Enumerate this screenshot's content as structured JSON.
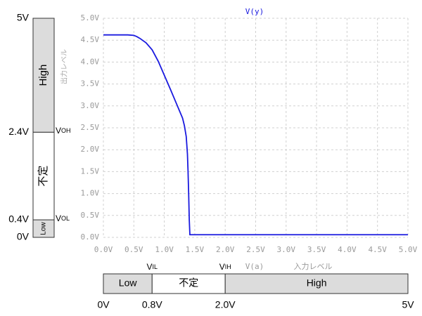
{
  "chart_data": {
    "type": "line",
    "title": "V(y)",
    "y_label": "出力レベル",
    "x_label": "V(a)",
    "x_label_2": "入力レベル",
    "series": [
      {
        "name": "V(y)",
        "color": "#1a1adf",
        "x": [
          0,
          0.1,
          0.2,
          0.3,
          0.4,
          0.5,
          0.55,
          0.6,
          0.7,
          0.8,
          0.9,
          1.0,
          1.1,
          1.2,
          1.3,
          1.33,
          1.36,
          1.38,
          1.39,
          1.4,
          1.41,
          1.42,
          2.0,
          3.0,
          4.0,
          5.0
        ],
        "values": [
          4.62,
          4.62,
          4.62,
          4.62,
          4.62,
          4.61,
          4.58,
          4.54,
          4.44,
          4.28,
          4.02,
          3.7,
          3.38,
          3.05,
          2.72,
          2.55,
          2.3,
          1.9,
          1.5,
          1.0,
          0.4,
          0.06,
          0.06,
          0.06,
          0.06,
          0.06
        ]
      }
    ],
    "xlim": [
      0,
      5
    ],
    "ylim": [
      0,
      5
    ],
    "xticks": [
      {
        "value": 0,
        "label": "0.0V"
      },
      {
        "value": 0.5,
        "label": "0.5V"
      },
      {
        "value": 1,
        "label": "1.0V"
      },
      {
        "value": 1.5,
        "label": "1.5V"
      },
      {
        "value": 2,
        "label": "2.0V"
      },
      {
        "value": 2.5,
        "label": "2.5V"
      },
      {
        "value": 3,
        "label": "3.0V"
      },
      {
        "value": 3.5,
        "label": "3.5V"
      },
      {
        "value": 4,
        "label": "4.0V"
      },
      {
        "value": 4.5,
        "label": "4.5V"
      },
      {
        "value": 5,
        "label": "5.0V"
      }
    ],
    "yticks": [
      {
        "value": 0,
        "label": "0.0V"
      },
      {
        "value": 0.5,
        "label": "0.5V"
      },
      {
        "value": 1,
        "label": "1.0V"
      },
      {
        "value": 1.5,
        "label": "1.5V"
      },
      {
        "value": 2,
        "label": "2.0V"
      },
      {
        "value": 2.5,
        "label": "2.5V"
      },
      {
        "value": 3,
        "label": "3.0V"
      },
      {
        "value": 3.5,
        "label": "3.5V"
      },
      {
        "value": 4,
        "label": "4.0V"
      },
      {
        "value": 4.5,
        "label": "4.5V"
      },
      {
        "value": 5,
        "label": "5.0V"
      }
    ],
    "grid": true,
    "output_levels": {
      "zones": [
        "Low",
        "不定",
        "High"
      ],
      "boundaries": [
        {
          "value": 0,
          "label": "0V"
        },
        {
          "value": 0.4,
          "label": "0.4V",
          "name": "V",
          "sub": "OL"
        },
        {
          "value": 2.4,
          "label": "2.4V",
          "name": "V",
          "sub": "OH"
        },
        {
          "value": 5,
          "label": "5V"
        }
      ]
    },
    "input_levels": {
      "zones": [
        "Low",
        "不定",
        "High"
      ],
      "boundaries": [
        {
          "value": 0,
          "label": "0V"
        },
        {
          "value": 0.8,
          "label": "0.8V",
          "name": "V",
          "sub": "IL"
        },
        {
          "value": 2,
          "label": "2.0V",
          "name": "V",
          "sub": "IH"
        },
        {
          "value": 5,
          "label": "5V"
        }
      ]
    }
  }
}
